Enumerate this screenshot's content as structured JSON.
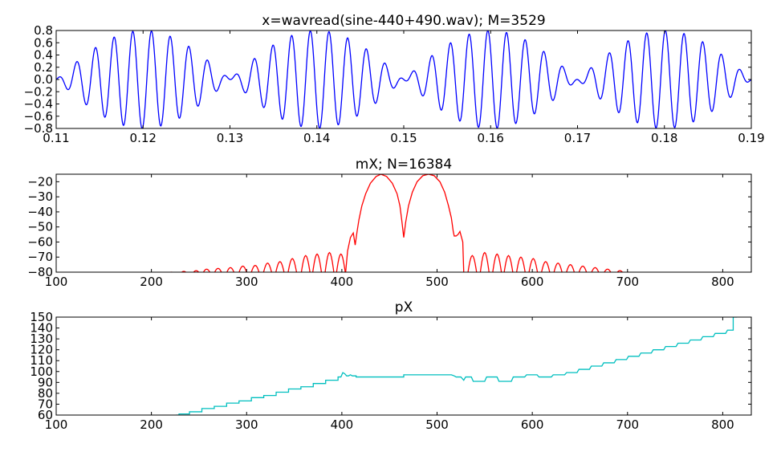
{
  "chart_data": [
    {
      "type": "line",
      "title": "x=wavread(sine-440+490.wav); M=3529",
      "xlabel": "",
      "ylabel": "",
      "xlim": [
        0.11,
        0.19
      ],
      "ylim": [
        -0.8,
        0.8
      ],
      "xticks": [
        "0.11",
        "0.12",
        "0.13",
        "0.14",
        "0.15",
        "0.16",
        "0.17",
        "0.18",
        "0.19"
      ],
      "yticks": [
        "0.8",
        "0.6",
        "0.4",
        "0.2",
        "0.0",
        "−0.2",
        "−0.4",
        "−0.6",
        "−0.8"
      ],
      "color": "#0000ff",
      "signal": {
        "f1": 440,
        "f2": 490,
        "amplitude": 0.4,
        "x_start": 0.11,
        "x_end": 0.19
      },
      "series": [
        {
          "values_described_by": "signal"
        }
      ]
    },
    {
      "type": "line",
      "title": "mX; N=16384",
      "xlabel": "",
      "ylabel": "",
      "xlim": [
        100,
        830
      ],
      "ylim": [
        -80,
        -15
      ],
      "xticks": [
        "100",
        "200",
        "300",
        "400",
        "500",
        "600",
        "700",
        "800"
      ],
      "yticks": [
        "−20",
        "−30",
        "−40",
        "−50",
        "−60",
        "−70",
        "−80"
      ],
      "color": "#ff0000",
      "main_lobe_points": [
        [
          404,
          -80
        ],
        [
          406,
          -66
        ],
        [
          409,
          -57
        ],
        [
          412,
          -54
        ],
        [
          414,
          -62
        ],
        [
          416,
          -53
        ],
        [
          418,
          -45
        ],
        [
          421,
          -36
        ],
        [
          425,
          -28
        ],
        [
          430,
          -21
        ],
        [
          436,
          -16.5
        ],
        [
          441,
          -15
        ],
        [
          447,
          -16.5
        ],
        [
          453,
          -21
        ],
        [
          458,
          -28
        ],
        [
          461,
          -36
        ],
        [
          463,
          -46
        ],
        [
          465,
          -57
        ],
        [
          467,
          -47
        ],
        [
          470,
          -36
        ],
        [
          474,
          -27
        ],
        [
          479,
          -20
        ],
        [
          485,
          -16
        ],
        [
          491,
          -15
        ],
        [
          497,
          -16
        ],
        [
          503,
          -20
        ],
        [
          508,
          -27
        ],
        [
          512,
          -36
        ],
        [
          515,
          -44
        ],
        [
          517,
          -53
        ],
        [
          518,
          -56
        ],
        [
          520,
          -56
        ],
        [
          522,
          -55
        ],
        [
          524,
          -53
        ],
        [
          527,
          -60
        ],
        [
          528,
          -80
        ]
      ],
      "left_side_lobe_tops": [
        [
          221,
          -80
        ],
        [
          234,
          -79.5
        ],
        [
          247,
          -79
        ],
        [
          258,
          -78
        ],
        [
          270,
          -77.5
        ],
        [
          283,
          -77
        ],
        [
          296,
          -76
        ],
        [
          309,
          -75.5
        ],
        [
          322,
          -74
        ],
        [
          335,
          -73
        ],
        [
          348,
          -71
        ],
        [
          362,
          -69
        ],
        [
          374,
          -68
        ],
        [
          387,
          -67
        ],
        [
          399,
          -68
        ]
      ],
      "right_side_lobe_tops": [
        [
          537,
          -69
        ],
        [
          550,
          -67
        ],
        [
          563,
          -68
        ],
        [
          575,
          -69
        ],
        [
          588,
          -70
        ],
        [
          601,
          -71
        ],
        [
          614,
          -73
        ],
        [
          627,
          -74
        ],
        [
          640,
          -75
        ],
        [
          653,
          -76
        ],
        [
          666,
          -77
        ],
        [
          679,
          -78
        ],
        [
          692,
          -79
        ],
        [
          701,
          -80
        ]
      ]
    },
    {
      "type": "line",
      "title": "pX",
      "xlabel": "",
      "ylabel": "",
      "xlim": [
        100,
        830
      ],
      "ylim": [
        60,
        150
      ],
      "xticks": [
        "100",
        "200",
        "300",
        "400",
        "500",
        "600",
        "700",
        "800"
      ],
      "yticks": [
        "150",
        "140",
        "130",
        "120",
        "110",
        "100",
        "90",
        "80",
        "70",
        "60"
      ],
      "color": "#00bfbf",
      "points": [
        [
          226,
          60
        ],
        [
          229,
          60
        ],
        [
          229,
          61
        ],
        [
          240,
          61
        ],
        [
          240,
          63
        ],
        [
          253,
          63
        ],
        [
          253,
          66
        ],
        [
          266,
          66
        ],
        [
          266,
          68
        ],
        [
          279,
          68
        ],
        [
          279,
          71
        ],
        [
          292,
          71
        ],
        [
          292,
          73
        ],
        [
          305,
          73
        ],
        [
          305,
          76
        ],
        [
          318,
          76
        ],
        [
          318,
          78
        ],
        [
          331,
          78
        ],
        [
          331,
          81
        ],
        [
          344,
          81
        ],
        [
          344,
          84
        ],
        [
          357,
          84
        ],
        [
          357,
          86
        ],
        [
          370,
          86
        ],
        [
          370,
          89
        ],
        [
          383,
          89
        ],
        [
          383,
          92
        ],
        [
          396,
          92
        ],
        [
          396,
          95
        ],
        [
          399,
          95
        ],
        [
          401,
          99
        ],
        [
          403,
          98
        ],
        [
          405,
          96
        ],
        [
          407,
          96
        ],
        [
          409,
          97
        ],
        [
          411,
          96
        ],
        [
          415,
          96
        ],
        [
          415,
          95
        ],
        [
          465,
          95
        ],
        [
          465,
          97
        ],
        [
          515,
          97
        ],
        [
          518,
          96
        ],
        [
          520,
          95
        ],
        [
          525,
          95
        ],
        [
          528,
          92
        ],
        [
          530,
          95
        ],
        [
          536,
          95
        ],
        [
          538,
          91
        ],
        [
          550,
          91
        ],
        [
          552,
          95
        ],
        [
          563,
          95
        ],
        [
          565,
          91
        ],
        [
          578,
          91
        ],
        [
          580,
          95
        ],
        [
          592,
          95
        ],
        [
          594,
          97
        ],
        [
          605,
          97
        ],
        [
          607,
          95
        ],
        [
          620,
          95
        ],
        [
          622,
          97
        ],
        [
          634,
          97
        ],
        [
          636,
          99
        ],
        [
          647,
          99
        ],
        [
          649,
          102
        ],
        [
          660,
          102
        ],
        [
          662,
          105
        ],
        [
          673,
          105
        ],
        [
          675,
          108
        ],
        [
          686,
          108
        ],
        [
          688,
          111
        ],
        [
          699,
          111
        ],
        [
          701,
          114
        ],
        [
          712,
          114
        ],
        [
          714,
          117
        ],
        [
          725,
          117
        ],
        [
          727,
          120
        ],
        [
          738,
          120
        ],
        [
          740,
          123
        ],
        [
          751,
          123
        ],
        [
          753,
          126
        ],
        [
          764,
          126
        ],
        [
          766,
          129
        ],
        [
          777,
          129
        ],
        [
          779,
          132
        ],
        [
          790,
          132
        ],
        [
          792,
          135
        ],
        [
          803,
          135
        ],
        [
          805,
          138
        ],
        [
          811,
          138
        ],
        [
          811,
          150
        ],
        [
          815,
          150
        ]
      ]
    }
  ]
}
